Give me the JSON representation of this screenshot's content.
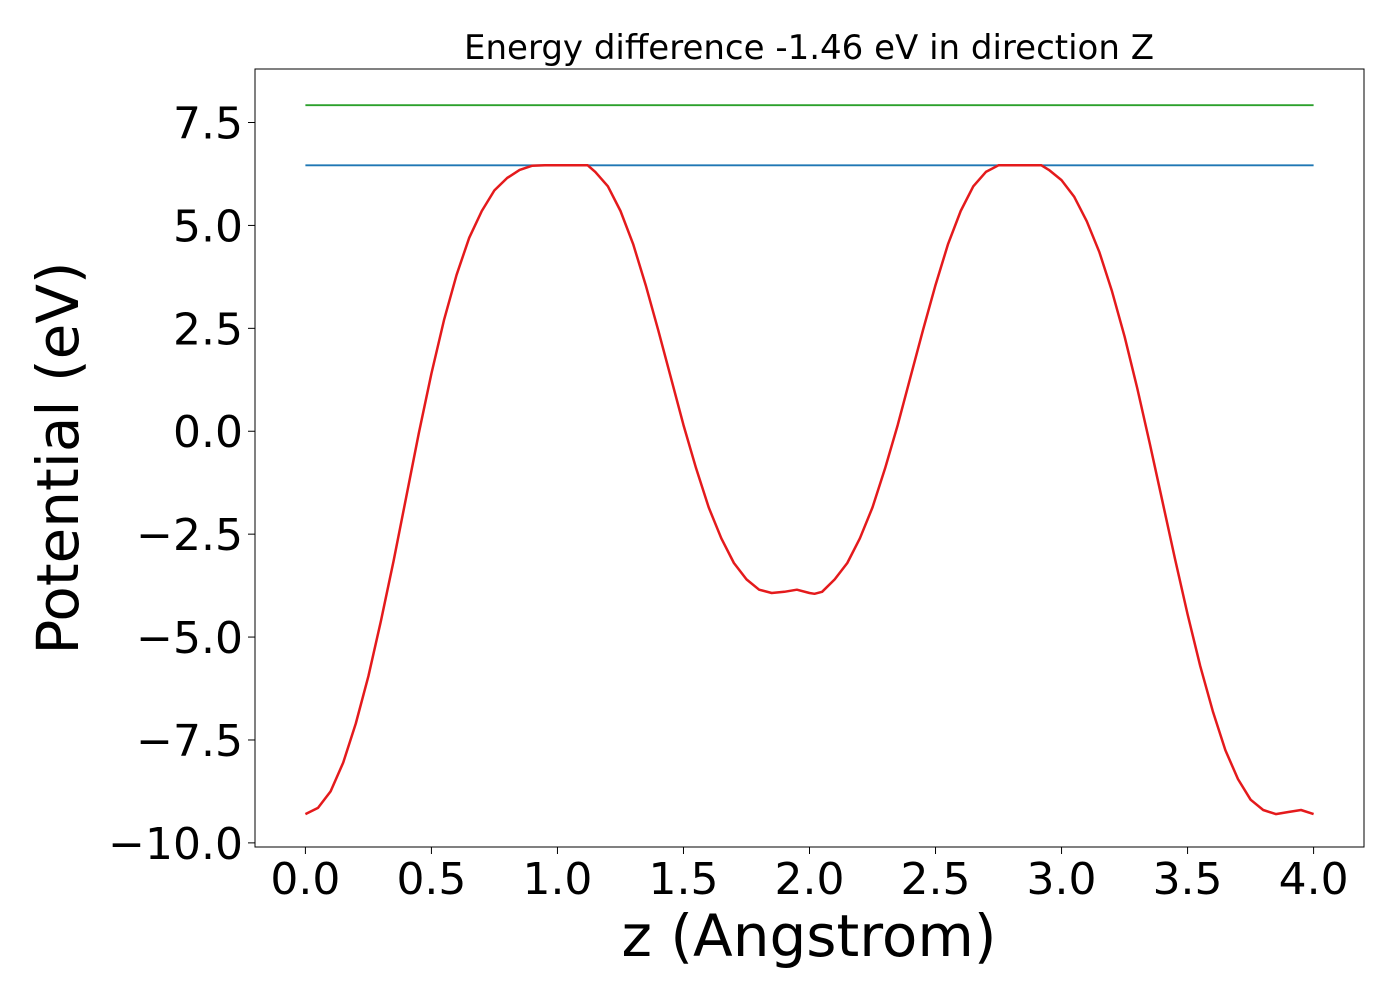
{
  "chart_data": {
    "type": "line",
    "title": "Energy difference -1.46 eV in direction Z",
    "xlabel": "z (Angstrom)",
    "ylabel": "Potential (eV)",
    "xlim": [
      -0.2,
      4.2
    ],
    "ylim": [
      -10.1,
      8.8
    ],
    "xticks": [
      0.0,
      0.5,
      1.0,
      1.5,
      2.0,
      2.5,
      3.0,
      3.5,
      4.0
    ],
    "xtick_labels": [
      "0.0",
      "0.5",
      "1.0",
      "1.5",
      "2.0",
      "2.5",
      "3.0",
      "3.5",
      "4.0"
    ],
    "yticks": [
      7.5,
      5.0,
      2.5,
      0.0,
      -2.5,
      -5.0,
      -7.5,
      -10.0
    ],
    "ytick_labels": [
      "7.5",
      "5.0",
      "2.5",
      "0.0",
      "−2.5",
      "−5.0",
      "−7.5",
      "−10.0"
    ],
    "grid": false,
    "series": [
      {
        "color": "#2ca02c",
        "x": [
          0.0,
          4.0
        ],
        "y": [
          7.92,
          7.92
        ]
      },
      {
        "color": "#1f77b4",
        "x": [
          0.0,
          4.0
        ],
        "y": [
          6.46,
          6.46
        ]
      },
      {
        "color": "#e41a1c",
        "x": [
          0.0,
          0.05,
          0.1,
          0.15,
          0.2,
          0.25,
          0.3,
          0.35,
          0.4,
          0.45,
          0.5,
          0.55,
          0.6,
          0.65,
          0.7,
          0.75,
          0.8,
          0.85,
          0.9,
          0.95,
          1.0,
          1.05,
          1.1,
          1.12,
          1.15,
          1.2,
          1.25,
          1.3,
          1.35,
          1.4,
          1.45,
          1.5,
          1.55,
          1.6,
          1.65,
          1.7,
          1.75,
          1.8,
          1.85,
          1.9,
          1.95,
          2.0,
          2.02,
          2.05,
          2.1,
          2.15,
          2.2,
          2.25,
          2.3,
          2.35,
          2.4,
          2.45,
          2.5,
          2.55,
          2.6,
          2.65,
          2.7,
          2.75,
          2.8,
          2.85,
          2.9,
          2.92,
          2.95,
          3.0,
          3.05,
          3.1,
          3.15,
          3.2,
          3.25,
          3.3,
          3.35,
          3.4,
          3.45,
          3.5,
          3.55,
          3.6,
          3.65,
          3.7,
          3.75,
          3.8,
          3.85,
          3.9,
          3.95,
          4.0
        ],
        "y": [
          -9.3,
          -9.15,
          -8.75,
          -8.05,
          -7.1,
          -5.95,
          -4.6,
          -3.15,
          -1.6,
          -0.05,
          1.4,
          2.7,
          3.8,
          4.7,
          5.35,
          5.85,
          6.15,
          6.35,
          6.45,
          6.46,
          6.46,
          6.46,
          6.46,
          6.46,
          6.3,
          5.95,
          5.35,
          4.55,
          3.55,
          2.45,
          1.3,
          0.15,
          -0.9,
          -1.85,
          -2.6,
          -3.2,
          -3.6,
          -3.85,
          -3.93,
          -3.9,
          -3.85,
          -3.93,
          -3.95,
          -3.9,
          -3.6,
          -3.2,
          -2.6,
          -1.85,
          -0.9,
          0.15,
          1.3,
          2.45,
          3.55,
          4.55,
          5.35,
          5.95,
          6.3,
          6.46,
          6.46,
          6.46,
          6.46,
          6.46,
          6.35,
          6.1,
          5.7,
          5.1,
          4.35,
          3.4,
          2.3,
          1.05,
          -0.3,
          -1.7,
          -3.1,
          -4.45,
          -5.7,
          -6.8,
          -7.75,
          -8.45,
          -8.95,
          -9.2,
          -9.3,
          -9.25,
          -9.2,
          -9.3
        ]
      }
    ]
  }
}
